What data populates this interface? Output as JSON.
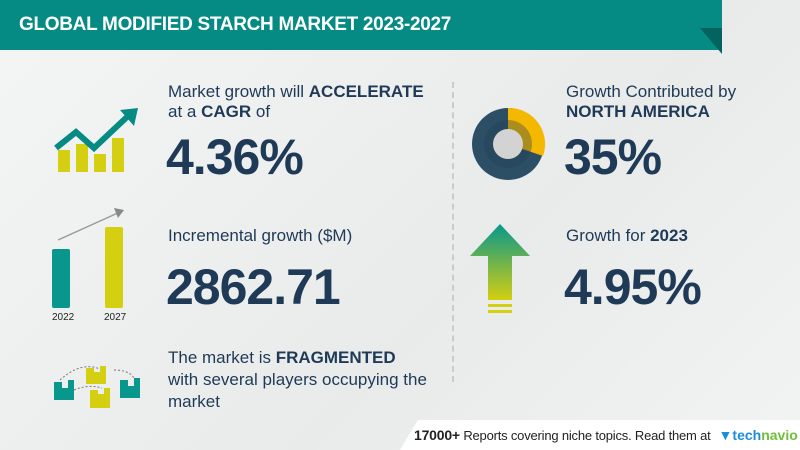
{
  "header": {
    "title": "GLOBAL MODIFIED STARCH MARKET 2023-2027"
  },
  "cagr": {
    "line1": "Market growth will ",
    "line1_bold": "ACCELERATE",
    "line2": "at a ",
    "line2_bold": "CAGR",
    "line2_tail": " of",
    "value": "4.36%"
  },
  "incremental": {
    "label": "Incremental growth ($M)",
    "value": "2862.71",
    "bar_years": [
      "2022",
      "2027"
    ]
  },
  "market": {
    "line1": "The market is ",
    "line1_bold": "FRAGMENTED",
    "line2": "with several players occupying the",
    "line3": "market"
  },
  "region": {
    "label": "Growth Contributed by",
    "region": "NORTH AMERICA",
    "value": "35%"
  },
  "growth2023": {
    "label": "Growth for ",
    "year": "2023",
    "value": "4.95%"
  },
  "footer": {
    "count": "17000+",
    "text": "Reports covering niche topics. Read them at",
    "brand_a": "tech",
    "brand_b": "navio"
  },
  "colors": {
    "teal": "#058b84",
    "navy": "#1f3a57",
    "lime": "#d4cf10",
    "gold": "#f5b800"
  }
}
